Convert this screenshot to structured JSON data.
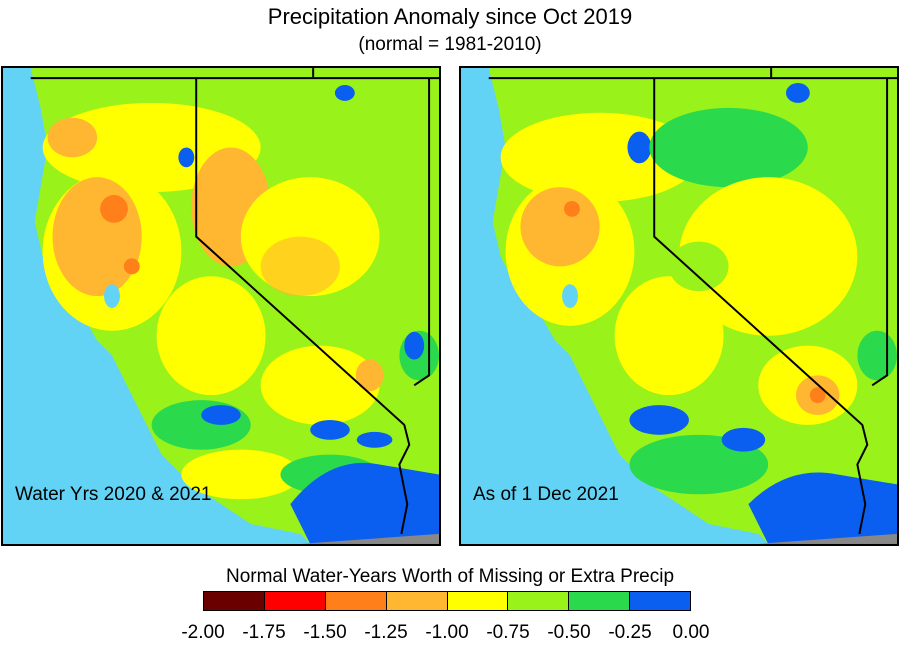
{
  "title": "Precipitation Anomaly since Oct 2019",
  "subtitle": "(normal = 1981-2010)",
  "panels": [
    {
      "label": "Water Yrs 2020 & 2021"
    },
    {
      "label": "As of 1 Dec 2021"
    }
  ],
  "legend": {
    "title": "Normal Water-Years Worth of Missing or Extra Precip",
    "colors": [
      "#6b0000",
      "#ff0000",
      "#ff7f1a",
      "#ffb630",
      "#ffff00",
      "#99f21a",
      "#2bd94d",
      "#0a5ef0"
    ],
    "ticks": [
      "-2.00",
      "-1.75",
      "-1.50",
      "-1.25",
      "-1.00",
      "-0.75",
      "-0.50",
      "-0.25",
      "0.00"
    ]
  },
  "map_colors": {
    "ocean": "#62d3f5",
    "land_background": "#99f21a",
    "mexico": "#888888",
    "yellow": "#ffff00",
    "orange": "#ffb630",
    "dark_orange": "#ff7f1a",
    "red": "#ff0000",
    "green": "#2bd94d",
    "blue": "#0a5ef0"
  }
}
